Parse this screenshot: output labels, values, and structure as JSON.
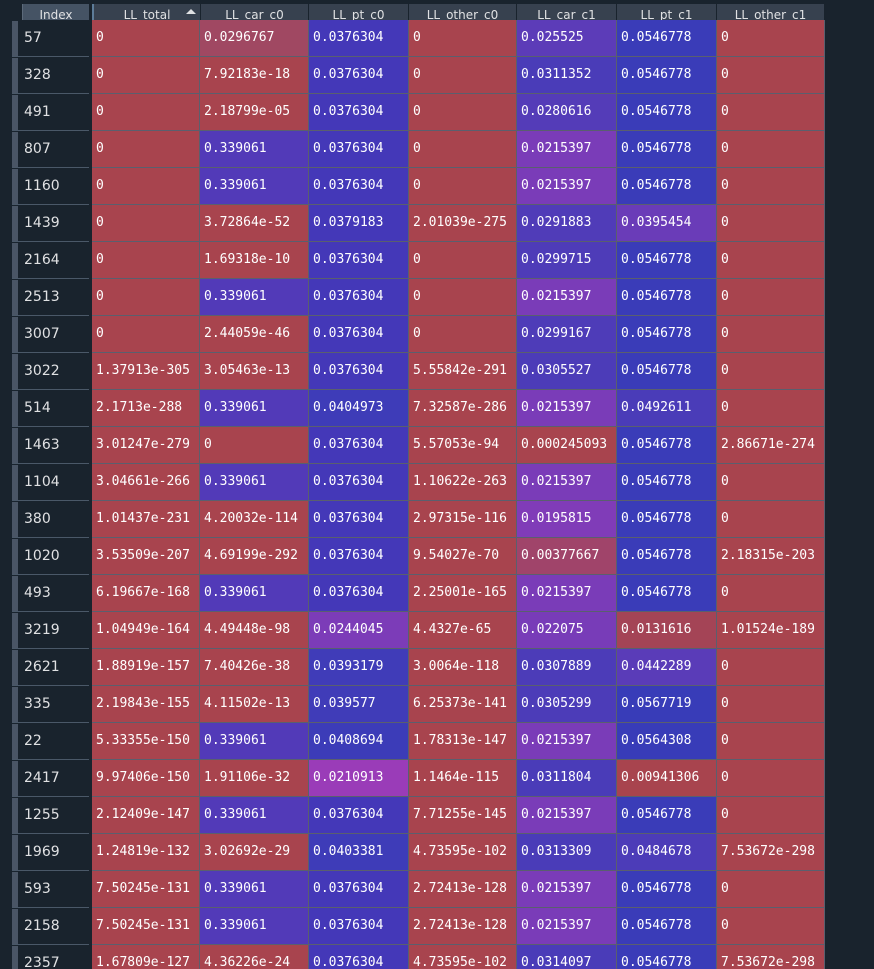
{
  "columns": [
    {
      "key": "index",
      "label": "Index"
    },
    {
      "key": "ll_total",
      "label": "LL_total",
      "sorted": "ascending"
    },
    {
      "key": "ll_car_c0",
      "label": "LL_car_c0"
    },
    {
      "key": "ll_pt_c0",
      "label": "LL_pt_c0"
    },
    {
      "key": "ll_other_c0",
      "label": "LL_other_c0"
    },
    {
      "key": "ll_car_c1",
      "label": "LL_car_c1"
    },
    {
      "key": "ll_pt_c1",
      "label": "LL_pt_c1"
    },
    {
      "key": "ll_other_c1",
      "label": "LL_other_c1"
    }
  ],
  "colors": {
    "background": "#19232d",
    "header": "#37414f",
    "heat_red": "#a8444e",
    "heat_blue": "#3a3cb8",
    "heat_purple": "#7a3cb8"
  },
  "rows": [
    {
      "index": "57",
      "cells": [
        "0",
        "0.0296767",
        "0.0376304",
        "0",
        "0.025525",
        "0.0546778",
        "0"
      ],
      "colors": [
        "#a8444e",
        "#a04862",
        "#4438b8",
        "#a8444e",
        "#5c3cb8",
        "#3a3cb8",
        "#a8444e"
      ]
    },
    {
      "index": "328",
      "cells": [
        "0",
        "7.92183e-18",
        "0.0376304",
        "0",
        "0.0311352",
        "0.0546778",
        "0"
      ],
      "colors": [
        "#a8444e",
        "#a8444e",
        "#4438b8",
        "#a8444e",
        "#4a3cb8",
        "#3a3cb8",
        "#a8444e"
      ]
    },
    {
      "index": "491",
      "cells": [
        "0",
        "2.18799e-05",
        "0.0376304",
        "0",
        "0.0280616",
        "0.0546778",
        "0"
      ],
      "colors": [
        "#a8444e",
        "#a8444e",
        "#4438b8",
        "#a8444e",
        "#543cb8",
        "#3a3cb8",
        "#a8444e"
      ]
    },
    {
      "index": "807",
      "cells": [
        "0",
        "0.339061",
        "0.0376304",
        "0",
        "0.0215397",
        "0.0546778",
        "0"
      ],
      "colors": [
        "#a8444e",
        "#523ab8",
        "#4438b8",
        "#a8444e",
        "#7a3cb8",
        "#3a3cb8",
        "#a8444e"
      ]
    },
    {
      "index": "1160",
      "cells": [
        "0",
        "0.339061",
        "0.0376304",
        "0",
        "0.0215397",
        "0.0546778",
        "0"
      ],
      "colors": [
        "#a8444e",
        "#523ab8",
        "#4438b8",
        "#a8444e",
        "#7a3cb8",
        "#3a3cb8",
        "#a8444e"
      ]
    },
    {
      "index": "1439",
      "cells": [
        "0",
        "3.72864e-52",
        "0.0379183",
        "2.01039e-275",
        "0.0291883",
        "0.0395454",
        "0"
      ],
      "colors": [
        "#a8444e",
        "#a8444e",
        "#4438b8",
        "#a8444e",
        "#503cb8",
        "#6a3cb8",
        "#a8444e"
      ]
    },
    {
      "index": "2164",
      "cells": [
        "0",
        "1.69318e-10",
        "0.0376304",
        "0",
        "0.0299715",
        "0.0546778",
        "0"
      ],
      "colors": [
        "#a8444e",
        "#a8444e",
        "#4438b8",
        "#a8444e",
        "#4e3cb8",
        "#3a3cb8",
        "#a8444e"
      ]
    },
    {
      "index": "2513",
      "cells": [
        "0",
        "0.339061",
        "0.0376304",
        "0",
        "0.0215397",
        "0.0546778",
        "0"
      ],
      "colors": [
        "#a8444e",
        "#523ab8",
        "#4438b8",
        "#a8444e",
        "#7a3cb8",
        "#3a3cb8",
        "#a8444e"
      ]
    },
    {
      "index": "3007",
      "cells": [
        "0",
        "2.44059e-46",
        "0.0376304",
        "0",
        "0.0299167",
        "0.0546778",
        "0"
      ],
      "colors": [
        "#a8444e",
        "#a8444e",
        "#4438b8",
        "#a8444e",
        "#4e3cb8",
        "#3a3cb8",
        "#a8444e"
      ]
    },
    {
      "index": "3022",
      "cells": [
        "1.37913e-305",
        "3.05463e-13",
        "0.0376304",
        "5.55842e-291",
        "0.0305527",
        "0.0546778",
        "0"
      ],
      "colors": [
        "#a8444e",
        "#a8444e",
        "#4438b8",
        "#a8444e",
        "#4c3cb8",
        "#3a3cb8",
        "#a8444e"
      ]
    },
    {
      "index": "514",
      "cells": [
        "2.1713e-288",
        "0.339061",
        "0.0404973",
        "7.32587e-286",
        "0.0215397",
        "0.0492611",
        "0"
      ],
      "colors": [
        "#a8444e",
        "#523ab8",
        "#3e3cb8",
        "#a8444e",
        "#7a3cb8",
        "#4a3cb8",
        "#a8444e"
      ]
    },
    {
      "index": "1463",
      "cells": [
        "3.01247e-279",
        "0",
        "0.0376304",
        "5.57053e-94",
        "0.000245093",
        "0.0546778",
        "2.86671e-274"
      ],
      "colors": [
        "#a8444e",
        "#a8444e",
        "#4438b8",
        "#a8444e",
        "#a8444e",
        "#3a3cb8",
        "#a8444e"
      ]
    },
    {
      "index": "1104",
      "cells": [
        "3.04661e-266",
        "0.339061",
        "0.0376304",
        "1.10622e-263",
        "0.0215397",
        "0.0546778",
        "0"
      ],
      "colors": [
        "#a8444e",
        "#523ab8",
        "#4438b8",
        "#a8444e",
        "#7a3cb8",
        "#3a3cb8",
        "#a8444e"
      ]
    },
    {
      "index": "380",
      "cells": [
        "1.01437e-231",
        "4.20032e-114",
        "0.0376304",
        "2.97315e-116",
        "0.0195815",
        "0.0546778",
        "0"
      ],
      "colors": [
        "#a8444e",
        "#a8444e",
        "#4438b8",
        "#a8444e",
        "#803cb8",
        "#3a3cb8",
        "#a8444e"
      ]
    },
    {
      "index": "1020",
      "cells": [
        "3.53509e-207",
        "4.69199e-292",
        "0.0376304",
        "9.54027e-70",
        "0.00377667",
        "0.0546778",
        "2.18315e-203"
      ],
      "colors": [
        "#a8444e",
        "#a8444e",
        "#4438b8",
        "#a8444e",
        "#a0446a",
        "#3a3cb8",
        "#a8444e"
      ]
    },
    {
      "index": "493",
      "cells": [
        "6.19667e-168",
        "0.339061",
        "0.0376304",
        "2.25001e-165",
        "0.0215397",
        "0.0546778",
        "0"
      ],
      "colors": [
        "#a8444e",
        "#523ab8",
        "#4438b8",
        "#a8444e",
        "#7a3cb8",
        "#3a3cb8",
        "#a8444e"
      ]
    },
    {
      "index": "3219",
      "cells": [
        "1.04949e-164",
        "4.49448e-98",
        "0.0244045",
        "4.4327e-65",
        "0.022075",
        "0.0131616",
        "1.01524e-189"
      ],
      "colors": [
        "#a8444e",
        "#a8444e",
        "#7c3cb8",
        "#a8444e",
        "#783cb8",
        "#a44456",
        "#a8444e"
      ]
    },
    {
      "index": "2621",
      "cells": [
        "1.88919e-157",
        "7.40426e-38",
        "0.0393179",
        "3.0064e-118",
        "0.0307889",
        "0.0442289",
        "0"
      ],
      "colors": [
        "#a8444e",
        "#a8444e",
        "#403cb8",
        "#a8444e",
        "#4c3cb8",
        "#5a3cb8",
        "#a8444e"
      ]
    },
    {
      "index": "335",
      "cells": [
        "2.19843e-155",
        "4.11502e-13",
        "0.039577",
        "6.25373e-141",
        "0.0305299",
        "0.0567719",
        "0"
      ],
      "colors": [
        "#a8444e",
        "#a8444e",
        "#403cb8",
        "#a8444e",
        "#4c3cb8",
        "#383cb8",
        "#a8444e"
      ]
    },
    {
      "index": "22",
      "cells": [
        "5.33355e-150",
        "0.339061",
        "0.0408694",
        "1.78313e-147",
        "0.0215397",
        "0.0564308",
        "0"
      ],
      "colors": [
        "#a8444e",
        "#523ab8",
        "#3c3cb8",
        "#a8444e",
        "#7a3cb8",
        "#383cb8",
        "#a8444e"
      ]
    },
    {
      "index": "2417",
      "cells": [
        "9.97406e-150",
        "1.91106e-32",
        "0.0210913",
        "1.1464e-115",
        "0.0311804",
        "0.00941306",
        "0"
      ],
      "colors": [
        "#a8444e",
        "#a8444e",
        "#9a3cb8",
        "#a8444e",
        "#4a3cb8",
        "#a8444e",
        "#a8444e"
      ]
    },
    {
      "index": "1255",
      "cells": [
        "2.12409e-147",
        "0.339061",
        "0.0376304",
        "7.71255e-145",
        "0.0215397",
        "0.0546778",
        "0"
      ],
      "colors": [
        "#a8444e",
        "#523ab8",
        "#4438b8",
        "#a8444e",
        "#7a3cb8",
        "#3a3cb8",
        "#a8444e"
      ]
    },
    {
      "index": "1969",
      "cells": [
        "1.24819e-132",
        "3.02692e-29",
        "0.0403381",
        "4.73595e-102",
        "0.0313309",
        "0.0484678",
        "7.53672e-298"
      ],
      "colors": [
        "#a8444e",
        "#a8444e",
        "#3e3cb8",
        "#a8444e",
        "#4a3cb8",
        "#4c3cb8",
        "#a8444e"
      ]
    },
    {
      "index": "593",
      "cells": [
        "7.50245e-131",
        "0.339061",
        "0.0376304",
        "2.72413e-128",
        "0.0215397",
        "0.0546778",
        "0"
      ],
      "colors": [
        "#a8444e",
        "#523ab8",
        "#4438b8",
        "#a8444e",
        "#7a3cb8",
        "#3a3cb8",
        "#a8444e"
      ]
    },
    {
      "index": "2158",
      "cells": [
        "7.50245e-131",
        "0.339061",
        "0.0376304",
        "2.72413e-128",
        "0.0215397",
        "0.0546778",
        "0"
      ],
      "colors": [
        "#a8444e",
        "#523ab8",
        "#4438b8",
        "#a8444e",
        "#7a3cb8",
        "#3a3cb8",
        "#a8444e"
      ]
    },
    {
      "index": "2357",
      "cells": [
        "1.67809e-127",
        "4.36226e-24",
        "0.0376304",
        "4.73595e-102",
        "0.0314097",
        "0.0546778",
        "7.53672e-298"
      ],
      "colors": [
        "#a8444e",
        "#a8444e",
        "#4438b8",
        "#a8444e",
        "#4a3cb8",
        "#3a3cb8",
        "#a8444e"
      ]
    }
  ]
}
